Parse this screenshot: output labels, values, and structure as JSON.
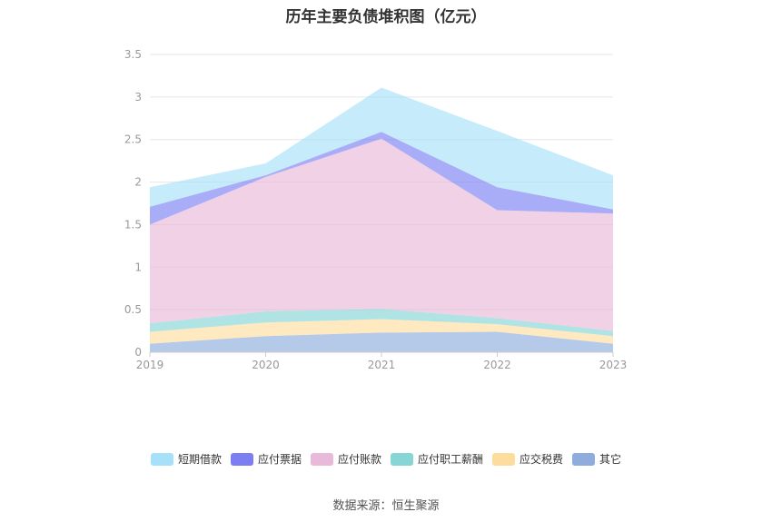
{
  "title": "历年主要负债堆积图（亿元）",
  "source": "数据来源：恒生聚源",
  "chart_data": {
    "type": "area",
    "stacked": true,
    "title": "历年主要负债堆积图（亿元）",
    "x": [
      "2019",
      "2020",
      "2021",
      "2022",
      "2023"
    ],
    "ylim": [
      0,
      3.5
    ],
    "yticks": [
      "0",
      "0.5",
      "1",
      "1.5",
      "2",
      "2.5",
      "3",
      "3.5"
    ],
    "grid": true,
    "legend_position": "bottom",
    "series": [
      {
        "name": "其它",
        "color": "#8eaddc",
        "values": [
          0.1,
          0.19,
          0.23,
          0.24,
          0.1
        ]
      },
      {
        "name": "应交税费",
        "color": "#fddd9e",
        "values": [
          0.14,
          0.16,
          0.16,
          0.09,
          0.09
        ]
      },
      {
        "name": "应付职工薪酬",
        "color": "#86d6d6",
        "values": [
          0.1,
          0.13,
          0.12,
          0.07,
          0.06
        ]
      },
      {
        "name": "应付账款",
        "color": "#e8b9d9",
        "values": [
          1.16,
          1.58,
          2.0,
          1.27,
          1.38
        ]
      },
      {
        "name": "应付票据",
        "color": "#7b7ff2",
        "values": [
          0.21,
          0.02,
          0.08,
          0.27,
          0.05
        ]
      },
      {
        "name": "短期借款",
        "color": "#a7e1f9",
        "values": [
          0.23,
          0.14,
          0.52,
          0.66,
          0.4
        ]
      }
    ]
  }
}
